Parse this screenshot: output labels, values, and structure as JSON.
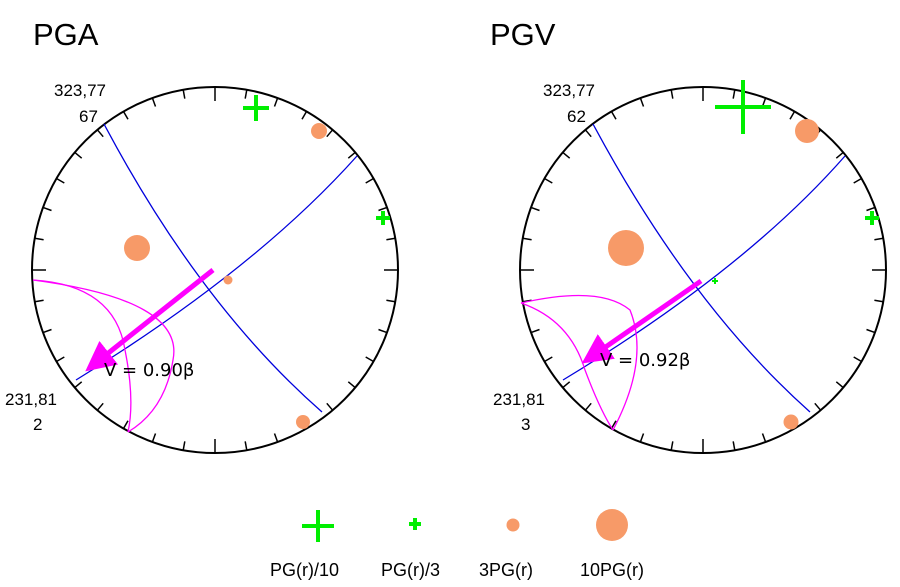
{
  "colors": {
    "plane": "#0000dd",
    "arrow": "#ff00ff",
    "cross": "#00ee00",
    "dot": "#f79a68",
    "frame": "#000000"
  },
  "panels": [
    {
      "title": "PGA",
      "label_top_line1": "323,77",
      "label_top_line2": "67",
      "label_left_line1": "231,81",
      "label_left_line2": "2",
      "velocity_label": "V = 0.90β",
      "crosses": [
        {
          "symbol": "PG(r)/10"
        },
        {
          "symbol": "PG(r)/3"
        }
      ],
      "dots": [
        {
          "symbol": "3PG(r)"
        },
        {
          "symbol": "10PG(r)"
        },
        {
          "symbol": "3PG(r)"
        },
        {
          "symbol": "3PG(r)"
        }
      ]
    },
    {
      "title": "PGV",
      "label_top_line1": "323,77",
      "label_top_line2": "62",
      "label_left_line1": "231,81",
      "label_left_line2": "3",
      "velocity_label": "V = 0.92β",
      "crosses": [
        {
          "symbol": "PG(r)/10"
        },
        {
          "symbol": "PG(r)/3"
        },
        {
          "symbol": "PG(r)/3"
        }
      ],
      "dots": [
        {
          "symbol": "3PG(r)"
        },
        {
          "symbol": "10PG(r)"
        },
        {
          "symbol": "3PG(r)"
        }
      ]
    }
  ],
  "legend": [
    {
      "icon": "large-cross-icon",
      "label": "PG(r)/10"
    },
    {
      "icon": "small-cross-icon",
      "label": "PG(r)/3"
    },
    {
      "icon": "small-dot-icon",
      "label": "3PG(r)"
    },
    {
      "icon": "large-dot-icon",
      "label": "10PG(r)"
    }
  ]
}
